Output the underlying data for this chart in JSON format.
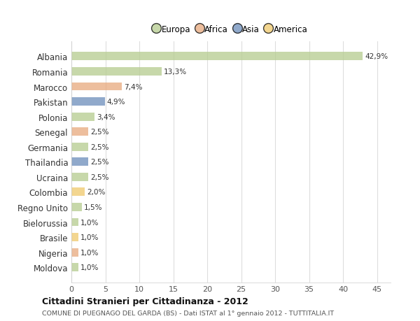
{
  "countries": [
    "Albania",
    "Romania",
    "Marocco",
    "Pakistan",
    "Polonia",
    "Senegal",
    "Germania",
    "Thailandia",
    "Ucraina",
    "Colombia",
    "Regno Unito",
    "Bielorussia",
    "Brasile",
    "Nigeria",
    "Moldova"
  ],
  "values": [
    42.9,
    13.3,
    7.4,
    4.9,
    3.4,
    2.5,
    2.5,
    2.5,
    2.5,
    2.0,
    1.5,
    1.0,
    1.0,
    1.0,
    1.0
  ],
  "labels": [
    "42,9%",
    "13,3%",
    "7,4%",
    "4,9%",
    "3,4%",
    "2,5%",
    "2,5%",
    "2,5%",
    "2,5%",
    "2,0%",
    "1,5%",
    "1,0%",
    "1,0%",
    "1,0%",
    "1,0%"
  ],
  "colors": [
    "#b5cc8e",
    "#b5cc8e",
    "#e8a87c",
    "#6b8cba",
    "#b5cc8e",
    "#e8a87c",
    "#b5cc8e",
    "#6b8cba",
    "#b5cc8e",
    "#f0c96b",
    "#b5cc8e",
    "#b5cc8e",
    "#f0c96b",
    "#e8a87c",
    "#b5cc8e"
  ],
  "continent_colors": {
    "Europa": "#b5cc8e",
    "Africa": "#e8a87c",
    "Asia": "#6b8cba",
    "America": "#f0c96b"
  },
  "xlim": [
    0,
    47
  ],
  "xticks": [
    0,
    5,
    10,
    15,
    20,
    25,
    30,
    35,
    40,
    45
  ],
  "title": "Cittadini Stranieri per Cittadinanza - 2012",
  "subtitle": "COMUNE DI PUEGNAGO DEL GARDA (BS) - Dati ISTAT al 1° gennaio 2012 - TUTTITALIA.IT",
  "bg_color": "#ffffff",
  "bar_alpha": 0.75
}
